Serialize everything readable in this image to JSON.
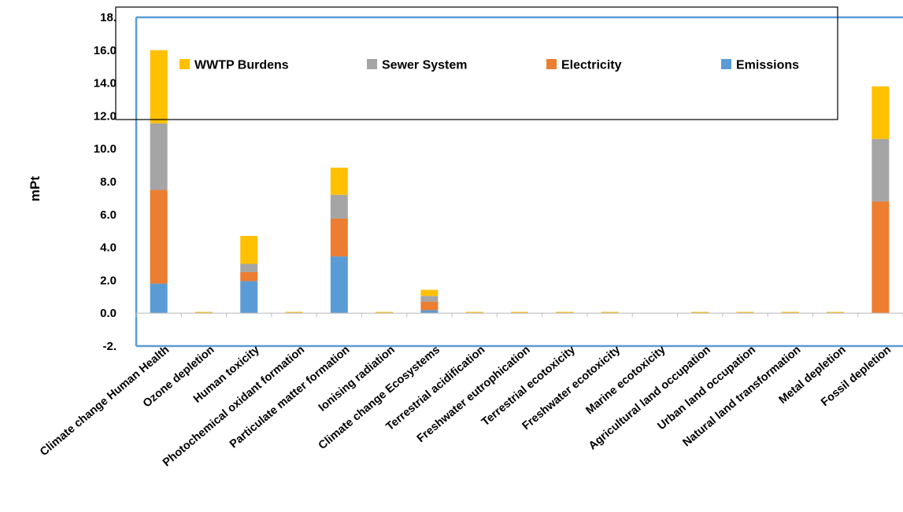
{
  "chart_data": {
    "type": "bar",
    "stacked": true,
    "ylabel": "mPt",
    "ylim": [
      -2,
      18
    ],
    "ytick_labels": [
      "-2.",
      "0.0",
      "2.0",
      "4.0",
      "6.0",
      "8.0",
      "10.0",
      "12.0",
      "14.0",
      "16.0",
      "18."
    ],
    "ytick_values": [
      -2,
      0,
      2,
      4,
      6,
      8,
      10,
      12,
      14,
      16,
      18
    ],
    "grid": false,
    "legend_position": "top",
    "categories": [
      "Climate change  Human Health",
      "Ozone depletion",
      "Human toxicity",
      "Photochemical oxidant  formation",
      "Particulate matter formation",
      "Ionising radiation",
      "Climate change  Ecosystems",
      "Terrestrial acidification",
      "Freshwater eutrophication",
      "Terrestrial ecotoxicity",
      "Freshwater ecotoxicity",
      "Marine ecotoxicity",
      "Agricultural land occupation",
      "Urban land  occupation",
      "Natural land transformation",
      "Metal depletion",
      "Fossil depletion"
    ],
    "series": [
      {
        "name": "Emissions",
        "color": "#5b9bd5",
        "values": [
          1.8,
          0.0,
          1.95,
          0.0,
          3.45,
          0.0,
          0.18,
          0.0,
          0.0,
          0.0,
          0.0,
          0.0,
          0.0,
          0.0,
          0.0,
          0.0,
          0.0
        ]
      },
      {
        "name": "Electricity",
        "color": "#ed7d31",
        "values": [
          5.7,
          0.01,
          0.55,
          0.01,
          2.3,
          0.01,
          0.52,
          0.01,
          0.01,
          0.01,
          0.01,
          0.0,
          0.01,
          0.01,
          0.01,
          0.01,
          6.8
        ]
      },
      {
        "name": "Sewer System",
        "color": "#a5a5a5",
        "values": [
          4.05,
          0.01,
          0.5,
          0.01,
          1.45,
          0.01,
          0.35,
          0.01,
          0.01,
          0.01,
          0.01,
          0.0,
          0.01,
          0.01,
          0.01,
          0.01,
          3.8
        ]
      },
      {
        "name": "WWTP Burdens",
        "color": "#ffc000",
        "values": [
          4.45,
          0.01,
          1.7,
          0.01,
          1.65,
          0.01,
          0.37,
          0.01,
          0.01,
          0.01,
          0.01,
          0.0,
          0.01,
          0.01,
          0.01,
          0.01,
          3.2
        ]
      }
    ],
    "legend_order": [
      "WWTP Burdens",
      "Sewer System",
      "Electricity",
      "Emissions"
    ]
  }
}
